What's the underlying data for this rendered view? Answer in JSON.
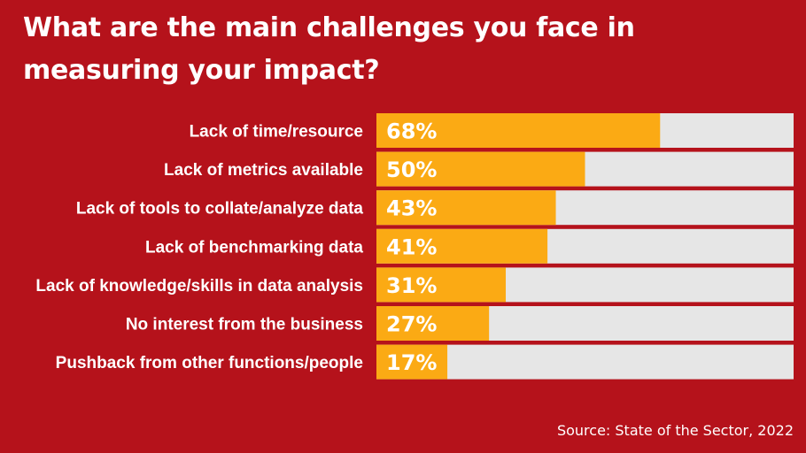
{
  "title": "What are the main challenges you face in measuring your impact?",
  "source": "Source: State of the Sector, 2022",
  "colors": {
    "background": "#b5121b",
    "bar_fill": "#fbaa14",
    "bar_track": "#e6e6e6",
    "text": "#ffffff"
  },
  "chart_data": {
    "type": "bar",
    "orientation": "horizontal",
    "categories": [
      "Lack of time/resource",
      "Lack of metrics available",
      "Lack of tools to collate/analyze data",
      "Lack of benchmarking data",
      "Lack of knowledge/skills in data analysis",
      "No interest from the business",
      "Pushback from other functions/people"
    ],
    "values": [
      68,
      50,
      43,
      41,
      31,
      27,
      17
    ],
    "value_labels": [
      "68%",
      "50%",
      "43%",
      "41%",
      "31%",
      "27%",
      "17%"
    ],
    "xlim": [
      0,
      100
    ],
    "grid": false,
    "legend": "none"
  }
}
